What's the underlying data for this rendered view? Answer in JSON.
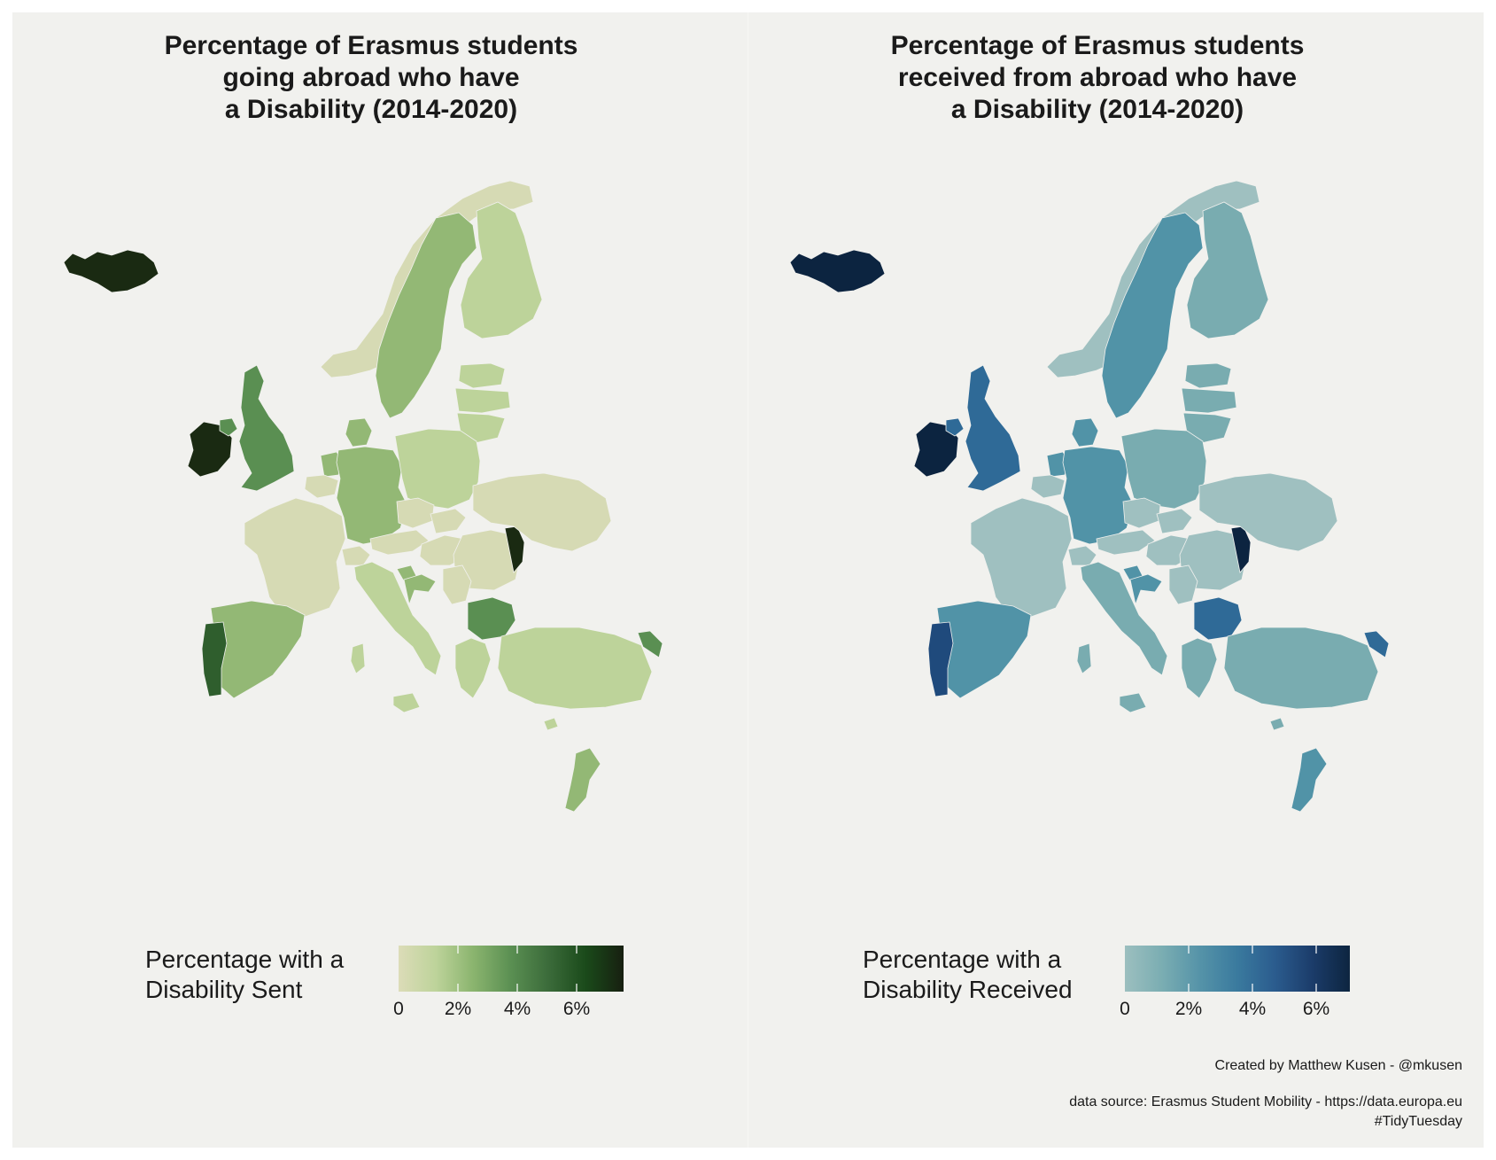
{
  "panels": [
    {
      "id": "sent",
      "title": "Percentage of Erasmus students\ngoing abroad who have\na Disability (2014-2020)",
      "legend_title": "Percentage with a\n Disability Sent",
      "legend_ticks": [
        "0",
        "2%",
        "4%",
        "6%"
      ],
      "colors": {
        "low": "#d6dab4",
        "c2": "#bdd39a",
        "c3": "#93b875",
        "c4": "#5a8f52",
        "c5": "#2f5e2d",
        "max": "#1a2a12"
      },
      "gradient": [
        "#dcdcb8",
        "#bdd39a",
        "#8ab46e",
        "#5a8f52",
        "#3b6b3a",
        "#1a4a1a",
        "#171f10"
      ]
    },
    {
      "id": "received",
      "title": "Percentage of Erasmus students\nreceived from abroad who have\na Disability (2014-2020)",
      "legend_title": "Percentage with a\n Disability Received",
      "legend_ticks": [
        "0",
        "2%",
        "4%",
        "6%"
      ],
      "colors": {
        "low": "#9fc0c0",
        "c2": "#79acb0",
        "c3": "#5193a7",
        "c4": "#2f6a97",
        "c5": "#1f4a7c",
        "max": "#0c2440"
      },
      "gradient": [
        "#9cbfbf",
        "#7aadb2",
        "#5593a8",
        "#3a7a9e",
        "#2b5c8e",
        "#1b3c6a",
        "#0d2540"
      ]
    }
  ],
  "caption": {
    "credit": "Created by Matthew Kusen - @mkusen",
    "source": "data source: Erasmus Student Mobility - https://data.europa.eu\n#TidyTuesday"
  }
}
